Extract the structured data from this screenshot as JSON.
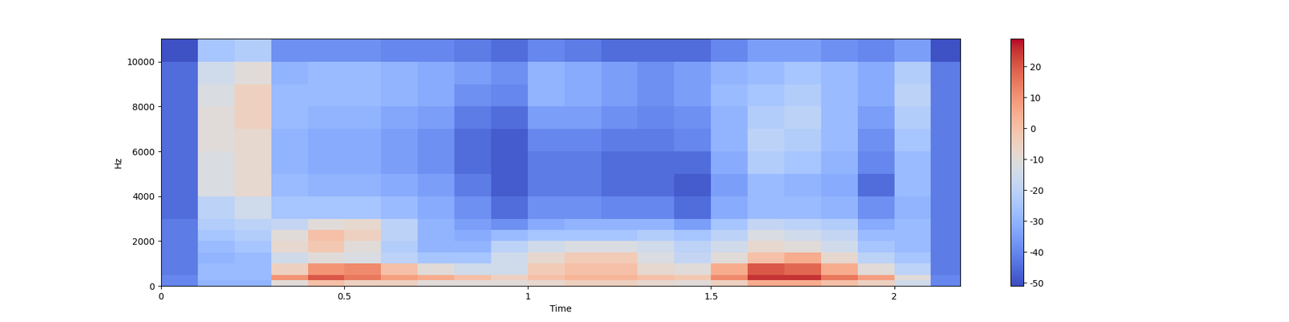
{
  "chart_data": {
    "type": "heatmap",
    "x_label": "Time",
    "y_label": "Hz",
    "xlim": [
      0,
      2.18
    ],
    "xticks": [
      0,
      0.5,
      1,
      1.5,
      2
    ],
    "ylim": [
      0,
      11025
    ],
    "yticks": [
      0,
      2000,
      4000,
      6000,
      8000,
      10000
    ],
    "color": "coolwarm",
    "x_edges": [
      0,
      0.1,
      0.2,
      0.3,
      0.4,
      0.5,
      0.6,
      0.7,
      0.8,
      0.9,
      1.0,
      1.1,
      1.2,
      1.3,
      1.4,
      1.5,
      1.6,
      1.7,
      1.8,
      1.9,
      2.0,
      2.1,
      2.18
    ],
    "y_edges": [
      0,
      250,
      500,
      1000,
      1500,
      2000,
      2500,
      3000,
      4000,
      5000,
      6000,
      7000,
      8000,
      9000,
      10000,
      11025
    ],
    "cells": [
      [
        -40,
        -30,
        -30,
        -10,
        0,
        -5,
        -5,
        -10,
        -10,
        -10,
        -8,
        -5,
        -5,
        -8,
        -10,
        -5,
        5,
        5,
        0,
        -5,
        -15,
        -40
      ],
      [
        -40,
        -28,
        -28,
        10,
        20,
        15,
        8,
        5,
        0,
        -5,
        0,
        3,
        3,
        0,
        -2,
        12,
        25,
        25,
        15,
        8,
        -10,
        -40
      ],
      [
        -42,
        -28,
        -28,
        -5,
        10,
        12,
        0,
        -10,
        -15,
        -15,
        -3,
        0,
        0,
        -8,
        -10,
        5,
        20,
        18,
        5,
        -10,
        -20,
        -42
      ],
      [
        -42,
        -30,
        -28,
        -15,
        -10,
        -12,
        -20,
        -25,
        -25,
        -15,
        -8,
        -3,
        -3,
        -12,
        -18,
        -10,
        0,
        5,
        -8,
        -20,
        -25,
        -42
      ],
      [
        -42,
        -28,
        -25,
        -8,
        -2,
        -10,
        -22,
        -30,
        -30,
        -20,
        -15,
        -12,
        -12,
        -15,
        -20,
        -15,
        -8,
        -10,
        -15,
        -25,
        -28,
        -42
      ],
      [
        -42,
        -25,
        -22,
        -10,
        0,
        -5,
        -20,
        -30,
        -32,
        -28,
        -25,
        -25,
        -25,
        -22,
        -25,
        -20,
        -12,
        -15,
        -18,
        -28,
        -28,
        -42
      ],
      [
        -42,
        -22,
        -20,
        -18,
        -10,
        -8,
        -20,
        -30,
        -35,
        -38,
        -32,
        -30,
        -30,
        -30,
        -35,
        -25,
        -18,
        -20,
        -22,
        -32,
        -28,
        -42
      ],
      [
        -45,
        -20,
        -15,
        -25,
        -25,
        -25,
        -28,
        -32,
        -38,
        -45,
        -38,
        -38,
        -40,
        -40,
        -45,
        -32,
        -28,
        -28,
        -30,
        -38,
        -30,
        -42
      ],
      [
        -45,
        -12,
        -8,
        -28,
        -30,
        -30,
        -32,
        -35,
        -42,
        -48,
        -42,
        -42,
        -45,
        -45,
        -48,
        -35,
        -28,
        -30,
        -32,
        -45,
        -28,
        -42
      ],
      [
        -45,
        -12,
        -8,
        -30,
        -32,
        -32,
        -35,
        -38,
        -45,
        -48,
        -42,
        -42,
        -45,
        -45,
        -45,
        -32,
        -22,
        -25,
        -30,
        -40,
        -28,
        -42
      ],
      [
        -45,
        -10,
        -8,
        -30,
        -32,
        -32,
        -35,
        -38,
        -45,
        -48,
        -40,
        -40,
        -42,
        -42,
        -40,
        -30,
        -20,
        -22,
        -28,
        -38,
        -25,
        -42
      ],
      [
        -45,
        -10,
        -5,
        -28,
        -30,
        -30,
        -33,
        -35,
        -42,
        -45,
        -35,
        -35,
        -38,
        -40,
        -38,
        -30,
        -22,
        -20,
        -28,
        -35,
        -22,
        -42
      ],
      [
        -45,
        -12,
        -5,
        -28,
        -28,
        -28,
        -30,
        -32,
        -38,
        -40,
        -30,
        -32,
        -35,
        -38,
        -35,
        -28,
        -25,
        -22,
        -28,
        -32,
        -20,
        -42
      ],
      [
        -45,
        -15,
        -10,
        -30,
        -28,
        -28,
        -30,
        -32,
        -35,
        -38,
        -30,
        -32,
        -35,
        -38,
        -35,
        -30,
        -28,
        -25,
        -28,
        -32,
        -22,
        -42
      ],
      [
        -50,
        -25,
        -22,
        -38,
        -38,
        -38,
        -40,
        -40,
        -42,
        -45,
        -40,
        -42,
        -45,
        -45,
        -45,
        -40,
        -35,
        -35,
        -38,
        -40,
        -35,
        -50
      ]
    ],
    "colorbar_range": [
      -51,
      29
    ],
    "colorbar_ticks": [
      -50,
      -40,
      -30,
      -20,
      -10,
      0,
      10,
      20
    ]
  }
}
